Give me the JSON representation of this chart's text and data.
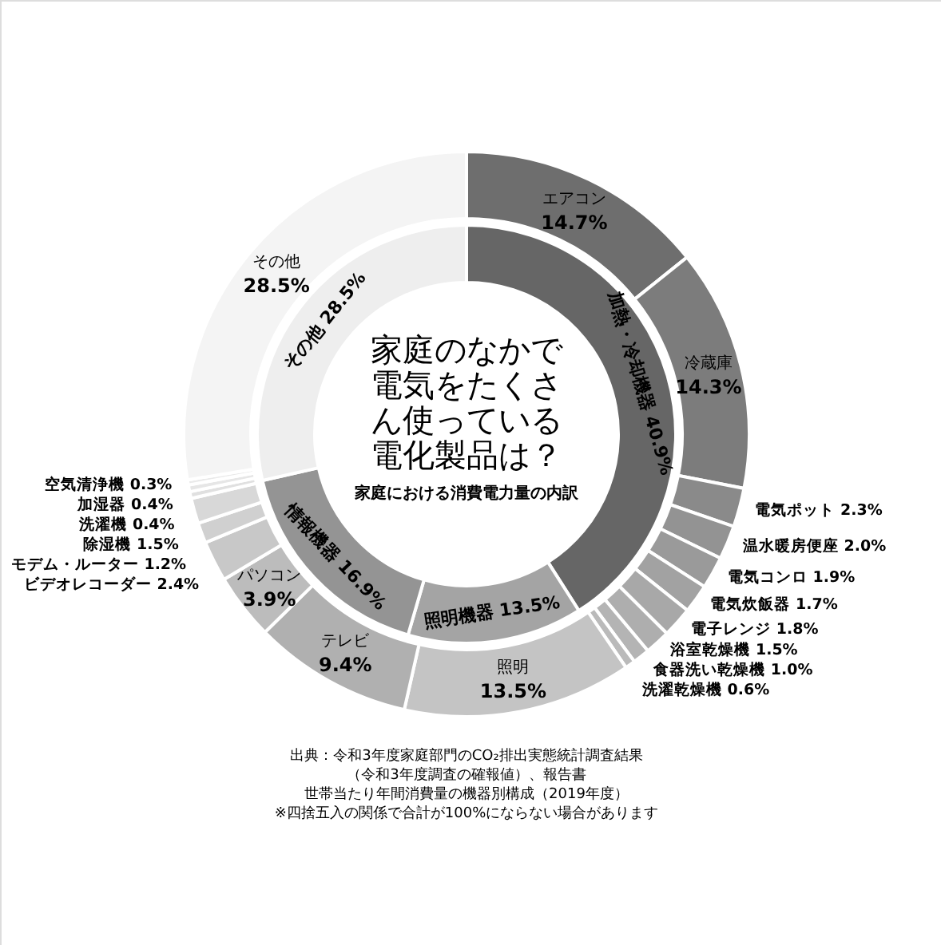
{
  "chart_data": [
    {
      "type": "donut",
      "title": "家庭のなかで電気をたくさん使っている電化製品は？",
      "subtitle": "家庭における消費電力量の内訳",
      "annotations": [
        "出典：令和3年度家庭部門のCO₂排出実態統計調査結果",
        "（令和3年度調査の確報値）、報告書",
        "世帯当たり年間消費量の機器別構成（2019年度）",
        "※四捨五入の関係で合計が100%にならない場合があります"
      ],
      "categories": [
        "エアコン",
        "冷蔵庫",
        "電気ポット",
        "温水暖房便座",
        "電気コンロ",
        "電気炊飯器",
        "電子レンジ",
        "浴室乾燥機",
        "食器洗い乾燥機",
        "洗濯乾燥機",
        "照明",
        "テレビ",
        "パソコン",
        "ビデオレコーダー",
        "モデム・ルーター",
        "除湿機",
        "洗濯機",
        "加湿器",
        "空気清浄機",
        "その他"
      ],
      "values": [
        14.7,
        14.3,
        2.3,
        2.0,
        1.9,
        1.7,
        1.8,
        1.5,
        1.0,
        0.6,
        13.5,
        9.4,
        3.9,
        2.4,
        1.2,
        1.5,
        0.4,
        0.4,
        0.3,
        28.5
      ],
      "value_labels": [
        "14.7%",
        "14.3%",
        "2.3%",
        "2.0%",
        "1.9%",
        "1.7%",
        "1.8%",
        "1.5%",
        "1.0%",
        "0.6%",
        "13.5%",
        "9.4%",
        "3.9%",
        "2.4%",
        "1.2%",
        "1.5%",
        "0.4%",
        "0.4%",
        "0.3%",
        "28.5%"
      ],
      "colors": [
        "#6e6e6e",
        "#7c7c7c",
        "#8a8a8a",
        "#939393",
        "#9a9a9a",
        "#a2a2a2",
        "#a8a8a8",
        "#aeaeae",
        "#b4b4b4",
        "#bababa",
        "#c4c4c4",
        "#b0b0b0",
        "#bcbcbc",
        "#c8c8c8",
        "#d0d0d0",
        "#d8d8d8",
        "#e0e0e0",
        "#e6e6e6",
        "#eaeaea",
        "#f4f4f4"
      ]
    },
    {
      "type": "donut",
      "categories": [
        "加熱・冷却機器",
        "照明機器",
        "情報機器",
        "その他"
      ],
      "values": [
        40.9,
        13.5,
        16.9,
        28.5
      ],
      "value_labels": [
        "40.9%",
        "13.5%",
        "16.9%",
        "28.5%"
      ],
      "colors": [
        "#666666",
        "#a4a4a4",
        "#949494",
        "#eeeeee"
      ]
    }
  ]
}
